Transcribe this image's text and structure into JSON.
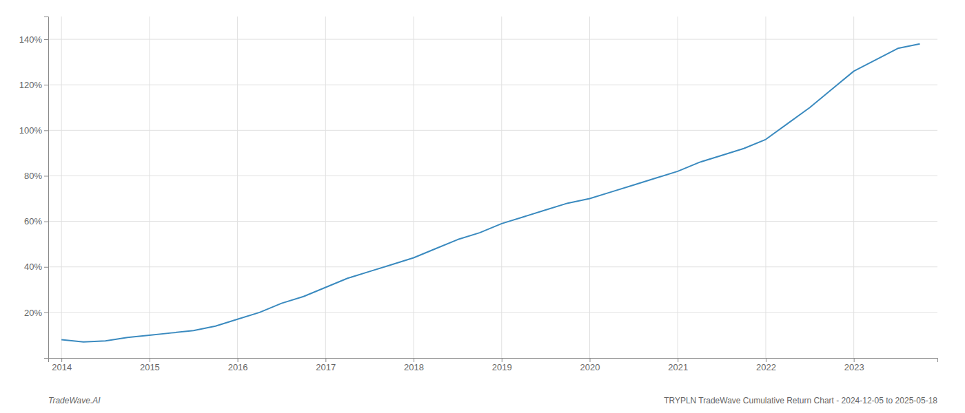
{
  "chart_data": {
    "type": "line",
    "annotations": [
      "TradeWave.AI",
      "TRYPLN TradeWave Cumulative Return Chart - 2024-12-05 to 2025-05-18"
    ],
    "x": [
      2014,
      2014.25,
      2014.5,
      2014.75,
      2015,
      2015.25,
      2015.5,
      2015.75,
      2016,
      2016.25,
      2016.5,
      2016.75,
      2017,
      2017.25,
      2017.5,
      2017.75,
      2018,
      2018.25,
      2018.5,
      2018.75,
      2019,
      2019.25,
      2019.5,
      2019.75,
      2020,
      2020.25,
      2020.5,
      2020.75,
      2021,
      2021.25,
      2021.5,
      2021.75,
      2022,
      2022.25,
      2022.5,
      2022.75,
      2023,
      2023.25,
      2023.5,
      2023.75
    ],
    "values": [
      8,
      7,
      7.5,
      9,
      10,
      11,
      12,
      14,
      17,
      20,
      24,
      27,
      31,
      35,
      38,
      41,
      44,
      48,
      52,
      55,
      59,
      62,
      65,
      68,
      70,
      73,
      76,
      79,
      82,
      86,
      89,
      92,
      96,
      103,
      110,
      118,
      126,
      131,
      136,
      138
    ],
    "color": "#3a8abf",
    "xlim": [
      2013.85,
      2023.95
    ],
    "ylim": [
      0,
      150
    ],
    "xticks": [
      2014,
      2015,
      2016,
      2017,
      2018,
      2019,
      2020,
      2021,
      2022,
      2023
    ],
    "yticks": [
      {
        "value": 20,
        "label": "20%"
      },
      {
        "value": 40,
        "label": "40%"
      },
      {
        "value": 60,
        "label": "60%"
      },
      {
        "value": 80,
        "label": "80%"
      },
      {
        "value": 100,
        "label": "100%"
      },
      {
        "value": 120,
        "label": "120%"
      },
      {
        "value": 140,
        "label": "140%"
      }
    ],
    "grid": true
  }
}
